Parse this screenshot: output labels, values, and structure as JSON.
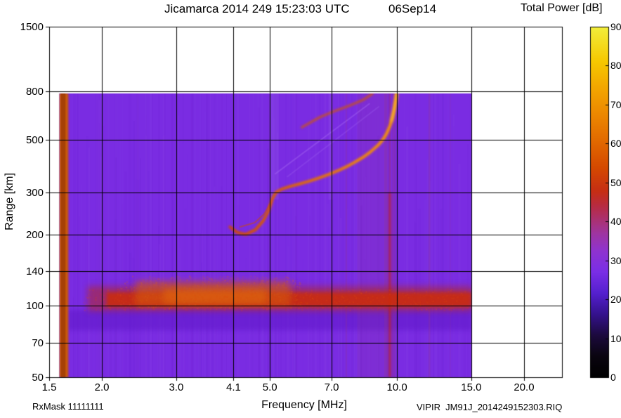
{
  "header": {
    "title_left": "Jicamarca 2014 249 15:23:03 UTC",
    "title_right": "06Sep14"
  },
  "axes": {
    "x_label": "Frequency [MHz]",
    "y_label": "Range [km]",
    "x_scale": "log",
    "y_scale": "log",
    "xlim": [
      1.5,
      24.6
    ],
    "ylim": [
      50,
      1500
    ],
    "x_ticks": [
      1.5,
      2.0,
      3.0,
      4.1,
      5.0,
      7.0,
      10.0,
      15.0,
      20.0
    ],
    "x_tick_labels": [
      "1.5",
      "2.0",
      "3.0",
      "4.1",
      "5.0",
      "7.0",
      "10.0",
      "15.0",
      "20.0"
    ],
    "y_ticks": [
      50,
      70,
      100,
      140,
      200,
      300,
      500,
      800,
      1500
    ],
    "grid": "on"
  },
  "colorbar": {
    "title": "Total Power [dB]",
    "min": 0,
    "max": 90,
    "ticks": [
      0,
      10,
      20,
      30,
      40,
      50,
      60,
      70,
      80,
      90
    ],
    "stops": [
      [
        0.0,
        "#000000"
      ],
      [
        0.06,
        "#0a0510"
      ],
      [
        0.12,
        "#1c0a3e"
      ],
      [
        0.18,
        "#35128e"
      ],
      [
        0.24,
        "#5520cf"
      ],
      [
        0.3,
        "#7a2ee6"
      ],
      [
        0.36,
        "#8f33d0"
      ],
      [
        0.41,
        "#9f35a0"
      ],
      [
        0.45,
        "#ab3170"
      ],
      [
        0.49,
        "#b82b40"
      ],
      [
        0.53,
        "#c62e14"
      ],
      [
        0.6,
        "#d54a00"
      ],
      [
        0.68,
        "#e36c00"
      ],
      [
        0.76,
        "#ee8c00"
      ],
      [
        0.83,
        "#f3a800"
      ],
      [
        0.9,
        "#f6c800"
      ],
      [
        1.0,
        "#f2ee3c"
      ]
    ]
  },
  "footer": {
    "rxmask": "RxMask 11111111",
    "file": "VIPIR  JM91J_2014249152303.RIQ"
  },
  "chart_data": {
    "type": "heatmap",
    "x_units": "MHz",
    "y_units": "km",
    "z_units": "dB",
    "background_color": "#7a2ce2",
    "background_level_db": 27,
    "data_extent": {
      "f_mhz": [
        1.585,
        15.05
      ],
      "range_km": [
        50,
        785
      ]
    },
    "critical_frequency_mhz": 10.0,
    "e_region_height_km": 105,
    "features": [
      {
        "name": "background-mottling",
        "type": "mottle",
        "seed": 42,
        "count": 300,
        "max_alpha": 0.07,
        "colors": [
          "#9a5df0",
          "#6218cc",
          "#8a40ea",
          "#aa70f5",
          "#5a10bb"
        ]
      },
      {
        "name": "dark-band-below-e-region",
        "type": "rect",
        "x": [
          1.66,
          15.05
        ],
        "y": [
          79,
          96
        ],
        "color": "#5f17c8",
        "alpha": 0.55,
        "blur": 3
      },
      {
        "name": "reddish-column-8-9mhz",
        "type": "rect",
        "x": [
          8.05,
          9.3
        ],
        "y": [
          50,
          785
        ],
        "color": "#9a3a85",
        "alpha": 0.14
      },
      {
        "name": "faint-rfi-7.6mhz",
        "type": "rect",
        "x": [
          7.55,
          7.62
        ],
        "y": [
          50,
          785
        ],
        "color": "#b04060",
        "alpha": 0.15
      },
      {
        "name": "faint-rfi-11.9mhz",
        "type": "rect",
        "x": [
          11.88,
          11.99
        ],
        "y": [
          50,
          785
        ],
        "color": "#b04060",
        "alpha": 0.18
      },
      {
        "name": "faint-rfi-13.4mhz",
        "type": "rect",
        "x": [
          13.35,
          13.42
        ],
        "y": [
          50,
          785
        ],
        "color": "#b04060",
        "alpha": 0.1
      },
      {
        "name": "light-streak-5mhz",
        "type": "rect",
        "x": [
          5.0,
          5.25
        ],
        "y": [
          280,
          785
        ],
        "color": "#b285f2",
        "alpha": 0.14
      },
      {
        "name": "light-streak-7mhz",
        "type": "rect",
        "x": [
          6.88,
          7.06
        ],
        "y": [
          280,
          785
        ],
        "color": "#b285f2",
        "alpha": 0.12
      },
      {
        "name": "rfi-stripe-9.4mhz",
        "type": "rect",
        "x": [
          9.32,
          9.5
        ],
        "y": [
          50,
          785
        ],
        "color": "#a03a70",
        "alpha": 0.28
      },
      {
        "name": "rfi-stripe-9.8mhz",
        "type": "rect",
        "x": [
          9.74,
          9.94
        ],
        "y": [
          50,
          785
        ],
        "color": "#a83860",
        "alpha": 0.22
      },
      {
        "name": "rfi-stripe-9.6mhz-upper",
        "type": "rect",
        "x": [
          9.55,
          9.69
        ],
        "y": [
          300,
          785
        ],
        "color": "#b03050",
        "alpha": 0.3
      },
      {
        "name": "rfi-stripe-9.6mhz-lower",
        "type": "rect",
        "x": [
          9.55,
          9.69
        ],
        "y": [
          50,
          300
        ],
        "color": "#c02415",
        "alpha": 0.7,
        "blur": 1.5
      },
      {
        "name": "e-region-band-outer",
        "type": "rect",
        "x": [
          1.85,
          15.05
        ],
        "y": [
          95,
          121
        ],
        "color": "#b82810",
        "alpha": 0.5,
        "blur": 4
      },
      {
        "name": "e-region-band-core",
        "type": "rect",
        "x": [
          2.05,
          15.05
        ],
        "y": [
          99,
          114
        ],
        "color": "#cc2c08",
        "alpha": 0.85,
        "blur": 2.5
      },
      {
        "name": "e-region-cloud",
        "type": "rect",
        "x": [
          2.4,
          5.6
        ],
        "y": [
          100,
          127
        ],
        "color": "#d4580e",
        "alpha": 0.6,
        "blur": 5
      },
      {
        "name": "e-region-cloud-bright",
        "type": "rect",
        "x": [
          2.8,
          4.9
        ],
        "y": [
          102,
          118
        ],
        "color": "#e0650f",
        "alpha": 0.6,
        "blur": 4
      },
      {
        "name": "e-region-speckle-left",
        "type": "speckle",
        "x": [
          2.2,
          5.9
        ],
        "y": [
          98,
          134
        ],
        "count": 600,
        "color": "#d86018",
        "alpha": 0.35,
        "seed": 9,
        "size": 2
      },
      {
        "name": "e-region-speckle-wide",
        "type": "speckle",
        "x": [
          1.8,
          15.0
        ],
        "y": [
          96,
          119
        ],
        "count": 800,
        "color": "#e04a10",
        "alpha": 0.3,
        "seed": 11,
        "size": 2
      },
      {
        "name": "faint-oblique-echo-1",
        "type": "line",
        "pts": [
          [
            5.15,
            360
          ],
          [
            8.6,
            710
          ]
        ],
        "color": "#a86cf2",
        "alpha": 0.4,
        "width": 2
      },
      {
        "name": "faint-oblique-echo-2",
        "type": "line",
        "pts": [
          [
            5.5,
            350
          ],
          [
            9.05,
            690
          ]
        ],
        "color": "#a86cf2",
        "alpha": 0.26,
        "width": 2
      },
      {
        "name": "second-hop-trace",
        "type": "line",
        "pts": [
          [
            5.95,
            565
          ],
          [
            6.55,
            622
          ],
          [
            7.1,
            660
          ],
          [
            7.7,
            696
          ],
          [
            8.3,
            736
          ],
          [
            8.75,
            783
          ]
        ],
        "color": "#cf5808",
        "alpha": 0.85,
        "width": 3,
        "blur": 1.5
      },
      {
        "name": "f-trace-echo-doubling",
        "type": "line",
        "pts": [
          [
            4.25,
            215
          ],
          [
            4.6,
            224
          ],
          [
            4.85,
            244
          ],
          [
            5.02,
            272
          ]
        ],
        "color": "#c84a10",
        "alpha": 0.55,
        "width": 2
      },
      {
        "name": "f-layer-trace",
        "type": "trace",
        "color1": "#d04800",
        "color2": "#ff9d00",
        "width": 4,
        "blur": 1.5,
        "pts": [
          [
            4.02,
            215
          ],
          [
            4.18,
            204
          ],
          [
            4.38,
            200
          ],
          [
            4.62,
            209
          ],
          [
            4.82,
            228
          ],
          [
            4.97,
            253
          ],
          [
            5.07,
            283
          ],
          [
            5.17,
            301
          ],
          [
            5.35,
            311
          ],
          [
            5.6,
            319
          ],
          [
            5.9,
            327
          ],
          [
            6.2,
            335
          ],
          [
            6.55,
            346
          ],
          [
            6.9,
            358
          ],
          [
            7.25,
            371
          ],
          [
            7.6,
            386
          ],
          [
            7.95,
            403
          ],
          [
            8.3,
            422
          ],
          [
            8.65,
            445
          ],
          [
            9.0,
            473
          ],
          [
            9.25,
            500
          ],
          [
            9.45,
            532
          ],
          [
            9.62,
            572
          ],
          [
            9.75,
            618
          ],
          [
            9.85,
            672
          ],
          [
            9.93,
            730
          ],
          [
            9.98,
            783
          ]
        ]
      },
      {
        "name": "asymptote-bright-glow",
        "type": "line",
        "pts": [
          [
            9.7,
            600
          ],
          [
            9.85,
            674
          ],
          [
            9.93,
            736
          ],
          [
            9.98,
            783
          ]
        ],
        "color": "#ffc832",
        "alpha": 0.85,
        "width": 3,
        "blur": 2
      },
      {
        "name": "calibration-stripe",
        "type": "rect",
        "x": [
          1.585,
          1.665
        ],
        "y": [
          50,
          785
        ],
        "color": "#c85a0a",
        "alpha": 1,
        "blur": 1
      },
      {
        "name": "calibration-stripe-core",
        "type": "rect",
        "x": [
          1.6,
          1.64
        ],
        "y": [
          50,
          785
        ],
        "color": "#a03c06",
        "alpha": 0.85
      }
    ]
  }
}
